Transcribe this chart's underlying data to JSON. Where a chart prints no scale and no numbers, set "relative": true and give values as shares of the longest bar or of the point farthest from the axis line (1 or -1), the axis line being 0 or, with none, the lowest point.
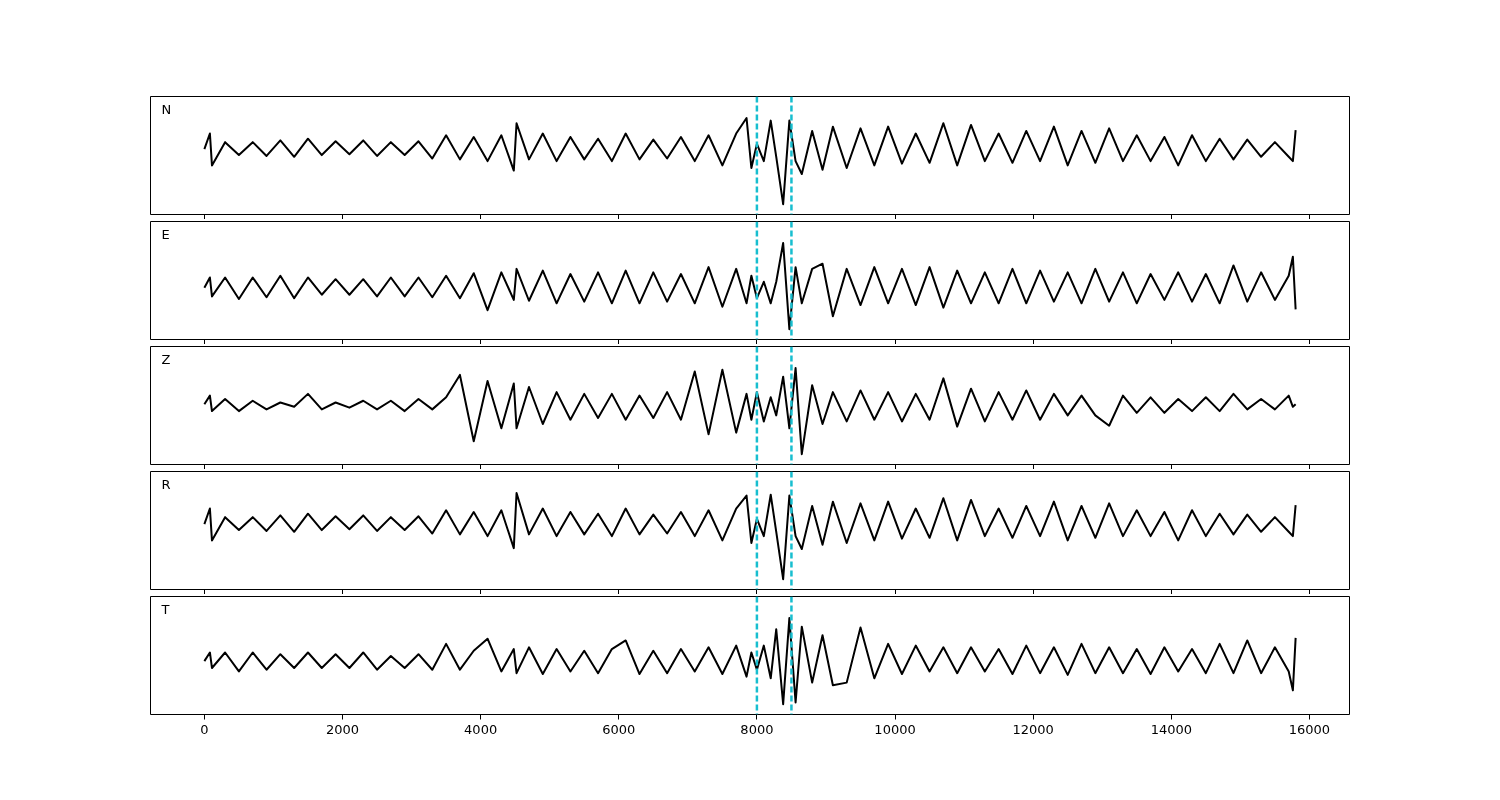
{
  "chart_data": [
    {
      "type": "line",
      "title": "N",
      "relative": true,
      "tick_labels": false,
      "xlim": [
        -780,
        16580
      ],
      "xticks": [
        0,
        2000,
        4000,
        6000,
        8000,
        10000,
        12000,
        14000,
        16000
      ],
      "ref_lines": [
        {
          "axis": "x",
          "value": 8000,
          "color": "#17becf",
          "line_style": "dashed"
        },
        {
          "axis": "x",
          "value": 8500,
          "color": "#17becf",
          "line_style": "dashed"
        }
      ],
      "x": [
        0,
        80,
        110,
        300,
        500,
        700,
        900,
        1100,
        1300,
        1500,
        1700,
        1900,
        2100,
        2300,
        2500,
        2700,
        2900,
        3100,
        3300,
        3500,
        3700,
        3900,
        4100,
        4300,
        4480,
        4520,
        4700,
        4900,
        5100,
        5300,
        5500,
        5700,
        5900,
        6100,
        6300,
        6500,
        6700,
        6900,
        7100,
        7300,
        7500,
        7700,
        7850,
        7920,
        8000,
        8100,
        8200,
        8280,
        8380,
        8470,
        8560,
        8650,
        8800,
        8950,
        9100,
        9300,
        9500,
        9700,
        9900,
        10100,
        10300,
        10500,
        10700,
        10900,
        11100,
        11300,
        11500,
        11700,
        11900,
        12100,
        12300,
        12500,
        12700,
        12900,
        13100,
        13300,
        13500,
        13700,
        13900,
        14100,
        14300,
        14500,
        14700,
        14900,
        15100,
        15300,
        15500,
        15700,
        15760,
        15800
      ],
      "series": [
        {
          "color": "#000000",
          "values": [
            0.64,
            0.82,
            0.45,
            0.72,
            0.57,
            0.72,
            0.56,
            0.74,
            0.55,
            0.76,
            0.57,
            0.73,
            0.58,
            0.74,
            0.56,
            0.72,
            0.57,
            0.73,
            0.53,
            0.8,
            0.52,
            0.78,
            0.5,
            0.8,
            0.39,
            0.94,
            0.52,
            0.82,
            0.5,
            0.78,
            0.52,
            0.76,
            0.5,
            0.82,
            0.52,
            0.75,
            0.53,
            0.78,
            0.5,
            0.8,
            0.45,
            0.82,
            1.0,
            0.42,
            0.7,
            0.5,
            0.97,
            0.55,
            0.0,
            0.97,
            0.5,
            0.35,
            0.85,
            0.4,
            0.9,
            0.42,
            0.88,
            0.45,
            0.9,
            0.47,
            0.82,
            0.48,
            0.94,
            0.45,
            0.92,
            0.5,
            0.82,
            0.48,
            0.85,
            0.5,
            0.9,
            0.45,
            0.85,
            0.48,
            0.88,
            0.5,
            0.8,
            0.5,
            0.78,
            0.45,
            0.8,
            0.5,
            0.76,
            0.52,
            0.75,
            0.55,
            0.72,
            0.55,
            0.5,
            0.86
          ]
        }
      ]
    },
    {
      "type": "line",
      "title": "E",
      "relative": true,
      "tick_labels": false,
      "xlim": [
        -780,
        16580
      ],
      "xticks": [
        0,
        2000,
        4000,
        6000,
        8000,
        10000,
        12000,
        14000,
        16000
      ],
      "ref_lines": [
        {
          "axis": "x",
          "value": 8000,
          "color": "#17becf",
          "line_style": "dashed"
        },
        {
          "axis": "x",
          "value": 8500,
          "color": "#17becf",
          "line_style": "dashed"
        }
      ],
      "x": [
        0,
        80,
        110,
        300,
        500,
        700,
        900,
        1100,
        1300,
        1500,
        1700,
        1900,
        2100,
        2300,
        2500,
        2700,
        2900,
        3100,
        3300,
        3500,
        3700,
        3900,
        4100,
        4300,
        4480,
        4520,
        4700,
        4900,
        5100,
        5300,
        5500,
        5700,
        5900,
        6100,
        6300,
        6500,
        6700,
        6900,
        7100,
        7300,
        7500,
        7700,
        7850,
        7920,
        8000,
        8100,
        8200,
        8280,
        8380,
        8470,
        8560,
        8650,
        8800,
        8950,
        9100,
        9300,
        9500,
        9700,
        9900,
        10100,
        10300,
        10500,
        10700,
        10900,
        11100,
        11300,
        11500,
        11700,
        11900,
        12100,
        12300,
        12500,
        12700,
        12900,
        13100,
        13300,
        13500,
        13700,
        13900,
        14100,
        14300,
        14500,
        14700,
        14900,
        15100,
        15300,
        15500,
        15700,
        15760,
        15800
      ],
      "series": [
        {
          "color": "#000000",
          "values": [
            0.48,
            0.6,
            0.38,
            0.6,
            0.35,
            0.6,
            0.37,
            0.62,
            0.36,
            0.6,
            0.4,
            0.58,
            0.4,
            0.58,
            0.38,
            0.6,
            0.38,
            0.6,
            0.37,
            0.62,
            0.36,
            0.65,
            0.22,
            0.66,
            0.34,
            0.7,
            0.33,
            0.68,
            0.3,
            0.64,
            0.32,
            0.66,
            0.3,
            0.68,
            0.3,
            0.66,
            0.32,
            0.64,
            0.3,
            0.72,
            0.26,
            0.7,
            0.3,
            0.62,
            0.36,
            0.55,
            0.3,
            0.55,
            1.0,
            0.0,
            0.72,
            0.3,
            0.7,
            0.76,
            0.15,
            0.7,
            0.28,
            0.72,
            0.3,
            0.7,
            0.28,
            0.72,
            0.25,
            0.68,
            0.3,
            0.66,
            0.3,
            0.7,
            0.3,
            0.68,
            0.32,
            0.66,
            0.3,
            0.7,
            0.32,
            0.66,
            0.3,
            0.64,
            0.34,
            0.66,
            0.32,
            0.64,
            0.3,
            0.74,
            0.32,
            0.66,
            0.34,
            0.62,
            0.84,
            0.23
          ]
        }
      ]
    },
    {
      "type": "line",
      "title": "Z",
      "relative": true,
      "tick_labels": false,
      "xlim": [
        -780,
        16580
      ],
      "xticks": [
        0,
        2000,
        4000,
        6000,
        8000,
        10000,
        12000,
        14000,
        16000
      ],
      "ref_lines": [
        {
          "axis": "x",
          "value": 8000,
          "color": "#17becf",
          "line_style": "dashed"
        },
        {
          "axis": "x",
          "value": 8500,
          "color": "#17becf",
          "line_style": "dashed"
        }
      ],
      "x": [
        0,
        80,
        110,
        300,
        500,
        700,
        900,
        1100,
        1300,
        1500,
        1700,
        1900,
        2100,
        2300,
        2500,
        2700,
        2900,
        3100,
        3300,
        3500,
        3700,
        3900,
        4100,
        4300,
        4480,
        4520,
        4700,
        4900,
        5100,
        5300,
        5500,
        5700,
        5900,
        6100,
        6300,
        6500,
        6700,
        6900,
        7100,
        7300,
        7500,
        7700,
        7850,
        7920,
        8000,
        8100,
        8200,
        8280,
        8380,
        8470,
        8560,
        8650,
        8800,
        8950,
        9100,
        9300,
        9500,
        9700,
        9900,
        10100,
        10300,
        10500,
        10700,
        10900,
        11100,
        11300,
        11500,
        11700,
        11900,
        12100,
        12300,
        12500,
        12700,
        12900,
        13100,
        13300,
        13500,
        13700,
        13900,
        14100,
        14300,
        14500,
        14700,
        14900,
        15100,
        15300,
        15500,
        15700,
        15760,
        15800
      ],
      "series": [
        {
          "color": "#000000",
          "values": [
            0.58,
            0.68,
            0.5,
            0.64,
            0.5,
            0.62,
            0.52,
            0.6,
            0.55,
            0.7,
            0.52,
            0.6,
            0.54,
            0.62,
            0.52,
            0.62,
            0.5,
            0.64,
            0.52,
            0.66,
            0.92,
            0.15,
            0.85,
            0.3,
            0.82,
            0.3,
            0.78,
            0.35,
            0.72,
            0.4,
            0.7,
            0.42,
            0.7,
            0.4,
            0.68,
            0.42,
            0.72,
            0.4,
            0.96,
            0.23,
            0.98,
            0.25,
            0.7,
            0.4,
            0.72,
            0.38,
            0.66,
            0.45,
            0.9,
            0.3,
            1.0,
            0.0,
            0.8,
            0.35,
            0.72,
            0.38,
            0.74,
            0.4,
            0.72,
            0.38,
            0.7,
            0.4,
            0.88,
            0.32,
            0.76,
            0.38,
            0.72,
            0.4,
            0.74,
            0.4,
            0.7,
            0.45,
            0.68,
            0.45,
            0.33,
            0.68,
            0.48,
            0.66,
            0.48,
            0.64,
            0.5,
            0.66,
            0.5,
            0.7,
            0.52,
            0.64,
            0.52,
            0.68,
            0.55,
            0.58
          ]
        }
      ]
    },
    {
      "type": "line",
      "title": "R",
      "relative": true,
      "tick_labels": false,
      "xlim": [
        -780,
        16580
      ],
      "xticks": [
        0,
        2000,
        4000,
        6000,
        8000,
        10000,
        12000,
        14000,
        16000
      ],
      "ref_lines": [
        {
          "axis": "x",
          "value": 8000,
          "color": "#17becf",
          "line_style": "dashed"
        },
        {
          "axis": "x",
          "value": 8500,
          "color": "#17becf",
          "line_style": "dashed"
        }
      ],
      "x": [
        0,
        80,
        110,
        300,
        500,
        700,
        900,
        1100,
        1300,
        1500,
        1700,
        1900,
        2100,
        2300,
        2500,
        2700,
        2900,
        3100,
        3300,
        3500,
        3700,
        3900,
        4100,
        4300,
        4480,
        4520,
        4700,
        4900,
        5100,
        5300,
        5500,
        5700,
        5900,
        6100,
        6300,
        6500,
        6700,
        6900,
        7100,
        7300,
        7500,
        7700,
        7850,
        7920,
        8000,
        8100,
        8200,
        8280,
        8380,
        8470,
        8560,
        8650,
        8800,
        8950,
        9100,
        9300,
        9500,
        9700,
        9900,
        10100,
        10300,
        10500,
        10700,
        10900,
        11100,
        11300,
        11500,
        11700,
        11900,
        12100,
        12300,
        12500,
        12700,
        12900,
        13100,
        13300,
        13500,
        13700,
        13900,
        14100,
        14300,
        14500,
        14700,
        14900,
        15100,
        15300,
        15500,
        15700,
        15760,
        15800
      ],
      "series": [
        {
          "color": "#000000",
          "values": [
            0.64,
            0.82,
            0.45,
            0.72,
            0.57,
            0.72,
            0.56,
            0.74,
            0.55,
            0.76,
            0.57,
            0.73,
            0.58,
            0.74,
            0.56,
            0.72,
            0.57,
            0.73,
            0.53,
            0.8,
            0.52,
            0.78,
            0.5,
            0.8,
            0.36,
            1.0,
            0.52,
            0.82,
            0.5,
            0.78,
            0.52,
            0.76,
            0.5,
            0.82,
            0.52,
            0.75,
            0.53,
            0.78,
            0.5,
            0.8,
            0.45,
            0.82,
            0.97,
            0.42,
            0.7,
            0.5,
            0.98,
            0.55,
            0.0,
            0.97,
            0.5,
            0.35,
            0.85,
            0.4,
            0.9,
            0.42,
            0.88,
            0.45,
            0.9,
            0.47,
            0.82,
            0.48,
            0.94,
            0.45,
            0.92,
            0.5,
            0.82,
            0.48,
            0.85,
            0.5,
            0.9,
            0.45,
            0.85,
            0.48,
            0.88,
            0.5,
            0.8,
            0.5,
            0.78,
            0.45,
            0.8,
            0.5,
            0.76,
            0.52,
            0.75,
            0.55,
            0.72,
            0.55,
            0.5,
            0.86
          ]
        }
      ]
    },
    {
      "type": "line",
      "title": "T",
      "relative": true,
      "tick_labels": "x",
      "xlim": [
        -780,
        16580
      ],
      "xticks": [
        0,
        2000,
        4000,
        6000,
        8000,
        10000,
        12000,
        14000,
        16000
      ],
      "ref_lines": [
        {
          "axis": "x",
          "value": 8000,
          "color": "#17becf",
          "line_style": "dashed"
        },
        {
          "axis": "x",
          "value": 8500,
          "color": "#17becf",
          "line_style": "dashed"
        }
      ],
      "x": [
        0,
        80,
        110,
        300,
        500,
        700,
        900,
        1100,
        1300,
        1500,
        1700,
        1900,
        2100,
        2300,
        2500,
        2700,
        2900,
        3100,
        3300,
        3500,
        3700,
        3900,
        4100,
        4300,
        4480,
        4520,
        4700,
        4900,
        5100,
        5300,
        5500,
        5700,
        5900,
        6100,
        6300,
        6500,
        6700,
        6900,
        7100,
        7300,
        7500,
        7700,
        7850,
        7920,
        8000,
        8100,
        8200,
        8280,
        8380,
        8470,
        8560,
        8650,
        8800,
        8950,
        9100,
        9300,
        9500,
        9700,
        9900,
        10100,
        10300,
        10500,
        10700,
        10900,
        11100,
        11300,
        11500,
        11700,
        11900,
        12100,
        12300,
        12500,
        12700,
        12900,
        13100,
        13300,
        13500,
        13700,
        13900,
        14100,
        14300,
        14500,
        14700,
        14900,
        15100,
        15300,
        15500,
        15700,
        15760,
        15800
      ],
      "series": [
        {
          "color": "#000000",
          "values": [
            0.5,
            0.6,
            0.42,
            0.6,
            0.38,
            0.6,
            0.4,
            0.58,
            0.42,
            0.6,
            0.42,
            0.58,
            0.42,
            0.6,
            0.4,
            0.56,
            0.42,
            0.58,
            0.4,
            0.7,
            0.4,
            0.62,
            0.76,
            0.38,
            0.64,
            0.36,
            0.66,
            0.35,
            0.64,
            0.38,
            0.62,
            0.36,
            0.64,
            0.74,
            0.35,
            0.62,
            0.36,
            0.64,
            0.38,
            0.66,
            0.35,
            0.68,
            0.32,
            0.6,
            0.4,
            0.68,
            0.3,
            0.87,
            0.0,
            1.0,
            0.02,
            0.9,
            0.25,
            0.8,
            0.22,
            0.25,
            0.89,
            0.3,
            0.7,
            0.35,
            0.68,
            0.38,
            0.66,
            0.36,
            0.66,
            0.38,
            0.64,
            0.35,
            0.68,
            0.36,
            0.66,
            0.34,
            0.7,
            0.36,
            0.66,
            0.36,
            0.64,
            0.35,
            0.66,
            0.38,
            0.64,
            0.36,
            0.7,
            0.36,
            0.74,
            0.36,
            0.66,
            0.38,
            0.16,
            0.77
          ]
        }
      ]
    }
  ]
}
